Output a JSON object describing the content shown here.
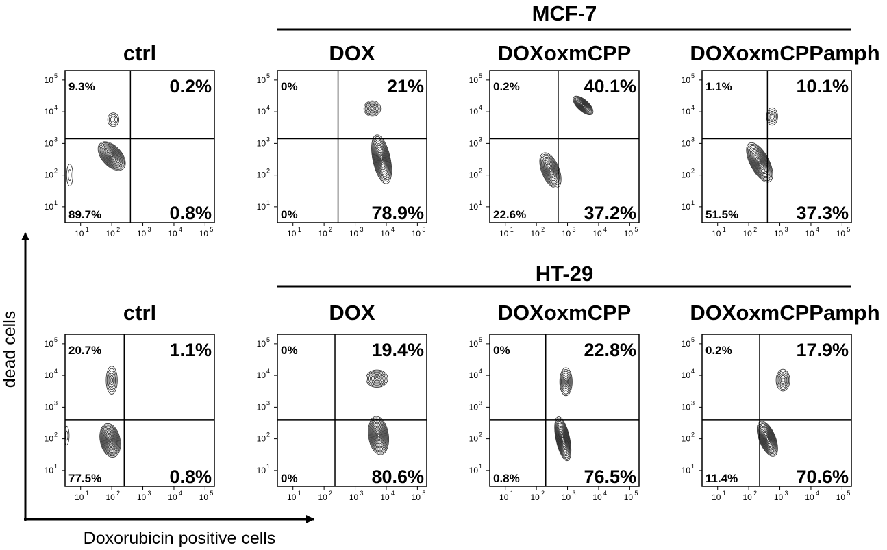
{
  "chart_data": {
    "type": "flow-cytometry-contour-grid",
    "x_axis_label": "Doxorubicin positive cells",
    "y_axis_label": "dead cells",
    "x_tick_labels": [
      "10",
      "10",
      "10",
      "10",
      "10"
    ],
    "x_tick_exponents": [
      "1",
      "2",
      "3",
      "4",
      "5"
    ],
    "y_tick_labels": [
      "10",
      "10",
      "10",
      "10",
      "10"
    ],
    "y_tick_exponents": [
      "1",
      "2",
      "3",
      "4",
      "5"
    ],
    "axis_range_log10": [
      0.5,
      5.3
    ],
    "groups": [
      {
        "title": "MCF-7",
        "panels": [
          {
            "title": "ctrl",
            "gate": {
              "x": 2.6,
              "y": 3.15
            },
            "quadrants": {
              "upper_left": "9.3%",
              "upper_right": "0.2%",
              "lower_left": "89.7%",
              "lower_right": "0.8%"
            },
            "populations": [
              {
                "x": 2.0,
                "y": 2.6,
                "sx": 0.32,
                "sy": 0.55,
                "rot": 42,
                "n": 14
              },
              {
                "x": 2.05,
                "y": 3.75,
                "sx": 0.18,
                "sy": 0.22,
                "rot": 0,
                "n": 4
              },
              {
                "x": 0.65,
                "y": 2.0,
                "sx": 0.1,
                "sy": 0.35,
                "rot": 0,
                "n": 2
              }
            ]
          },
          {
            "title": "DOX",
            "gate": {
              "x": 2.45,
              "y": 3.15
            },
            "quadrants": {
              "upper_left": "0%",
              "upper_right": "21%",
              "lower_left": "0%",
              "lower_right": "78.9%"
            },
            "populations": [
              {
                "x": 3.55,
                "y": 4.1,
                "sx": 0.27,
                "sy": 0.25,
                "rot": 0,
                "n": 7
              },
              {
                "x": 3.85,
                "y": 2.5,
                "sx": 0.28,
                "sy": 0.8,
                "rot": 12,
                "n": 14
              }
            ]
          },
          {
            "title": "DOXoxmCPP",
            "gate": {
              "x": 2.7,
              "y": 3.15
            },
            "quadrants": {
              "upper_left": "0.2%",
              "upper_right": "40.1%",
              "lower_left": "22.6%",
              "lower_right": "37.2%"
            },
            "populations": [
              {
                "x": 3.5,
                "y": 4.2,
                "sx": 0.4,
                "sy": 0.18,
                "rot": -42,
                "n": 12
              },
              {
                "x": 2.45,
                "y": 2.15,
                "sx": 0.28,
                "sy": 0.6,
                "rot": 22,
                "n": 12
              }
            ]
          },
          {
            "title": "DOXoxmCPPamph",
            "gate": {
              "x": 2.6,
              "y": 3.15
            },
            "quadrants": {
              "upper_left": "1.1%",
              "upper_right": "10.1%",
              "lower_left": "51.5%",
              "lower_right": "37.3%"
            },
            "populations": [
              {
                "x": 2.75,
                "y": 3.85,
                "sx": 0.18,
                "sy": 0.28,
                "rot": 0,
                "n": 5
              },
              {
                "x": 2.35,
                "y": 2.4,
                "sx": 0.3,
                "sy": 0.7,
                "rot": 28,
                "n": 14
              }
            ]
          }
        ]
      },
      {
        "title": "HT-29",
        "panels": [
          {
            "title": "ctrl",
            "gate": {
              "x": 2.4,
              "y": 2.6
            },
            "quadrants": {
              "upper_left": "20.7%",
              "upper_right": "1.1%",
              "lower_left": "77.5%",
              "lower_right": "0.8%"
            },
            "populations": [
              {
                "x": 1.95,
                "y": 1.95,
                "sx": 0.32,
                "sy": 0.55,
                "rot": 12,
                "n": 14
              },
              {
                "x": 2.0,
                "y": 3.85,
                "sx": 0.18,
                "sy": 0.45,
                "rot": 0,
                "n": 6
              },
              {
                "x": 0.55,
                "y": 2.1,
                "sx": 0.08,
                "sy": 0.3,
                "rot": 0,
                "n": 2
              }
            ]
          },
          {
            "title": "DOX",
            "gate": {
              "x": 2.35,
              "y": 2.6
            },
            "quadrants": {
              "upper_left": "0%",
              "upper_right": "19.4%",
              "lower_left": "0%",
              "lower_right": "80.6%"
            },
            "populations": [
              {
                "x": 3.7,
                "y": 3.9,
                "sx": 0.35,
                "sy": 0.28,
                "rot": 0,
                "n": 8
              },
              {
                "x": 3.75,
                "y": 2.1,
                "sx": 0.32,
                "sy": 0.62,
                "rot": 8,
                "n": 14
              }
            ]
          },
          {
            "title": "DOXoxmCPP",
            "gate": {
              "x": 2.3,
              "y": 2.6
            },
            "quadrants": {
              "upper_left": "0%",
              "upper_right": "22.8%",
              "lower_left": "0.8%",
              "lower_right": "76.5%"
            },
            "populations": [
              {
                "x": 2.95,
                "y": 3.8,
                "sx": 0.2,
                "sy": 0.45,
                "rot": 0,
                "n": 8
              },
              {
                "x": 2.85,
                "y": 2.0,
                "sx": 0.22,
                "sy": 0.72,
                "rot": 12,
                "n": 14
              }
            ]
          },
          {
            "title": "DOXoxmCPPamph",
            "gate": {
              "x": 2.35,
              "y": 2.6
            },
            "quadrants": {
              "upper_left": "0.2%",
              "upper_right": "17.9%",
              "lower_left": "11.4%",
              "lower_right": "70.6%"
            },
            "populations": [
              {
                "x": 3.1,
                "y": 3.85,
                "sx": 0.22,
                "sy": 0.35,
                "rot": 0,
                "n": 7
              },
              {
                "x": 2.6,
                "y": 2.0,
                "sx": 0.26,
                "sy": 0.6,
                "rot": 22,
                "n": 14
              }
            ]
          }
        ]
      }
    ]
  }
}
